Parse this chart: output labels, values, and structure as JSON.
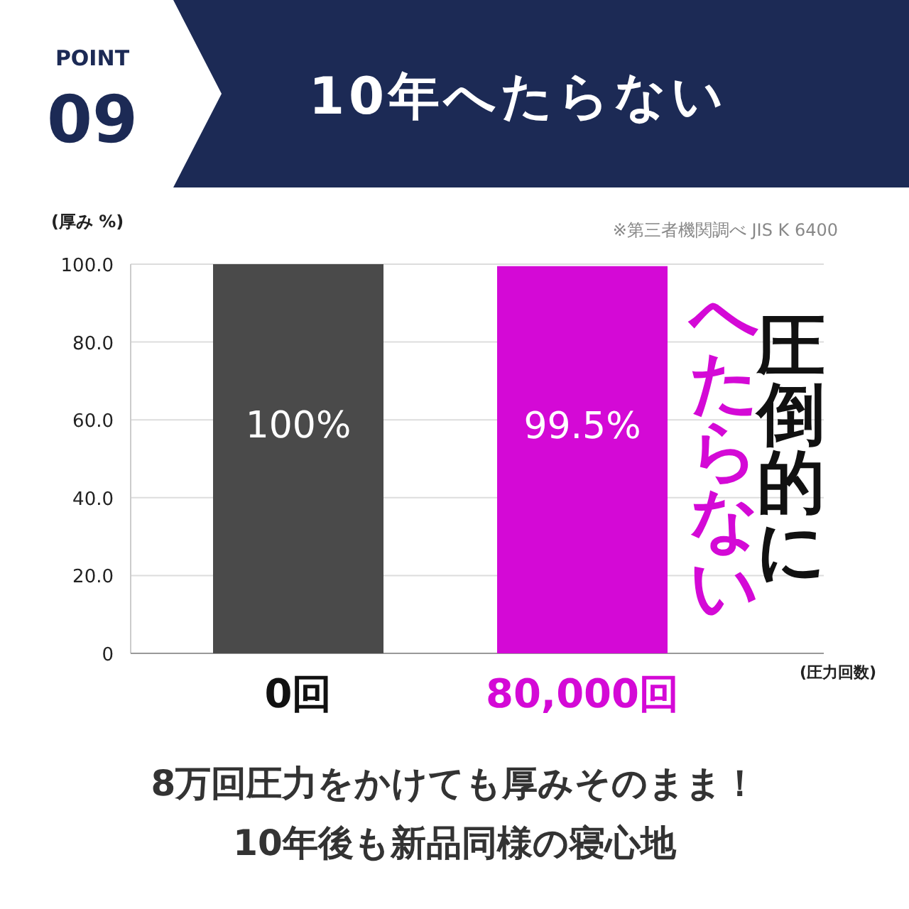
{
  "chart_data": {
    "type": "bar",
    "title": "10年へたらない",
    "xlabel": "(圧力回数)",
    "ylabel": "(厚み %)",
    "categories": [
      "0回",
      "80,000回"
    ],
    "values": [
      100,
      99.5
    ],
    "colors": [
      "#4a4a4a",
      "#d409d6"
    ],
    "value_labels": [
      "100%",
      "99.5%"
    ],
    "ylim": [
      0,
      100
    ],
    "yticks": [
      0,
      {
        "value": 20,
        "label": "20.0"
      },
      {
        "value": 40,
        "label": "40.0"
      },
      {
        "value": 60,
        "label": "60.0"
      },
      {
        "value": 80,
        "label": "80.0"
      },
      {
        "value": 100,
        "label": "100.0"
      }
    ],
    "grid": "y",
    "annotations": [
      "POINT",
      "09",
      "※第三者機関調べ JIS K 6400",
      "圧倒的に",
      "へたらない",
      "8万回圧力をかけても厚みそのまま！",
      "10年後も新品同様の寝心地"
    ]
  }
}
